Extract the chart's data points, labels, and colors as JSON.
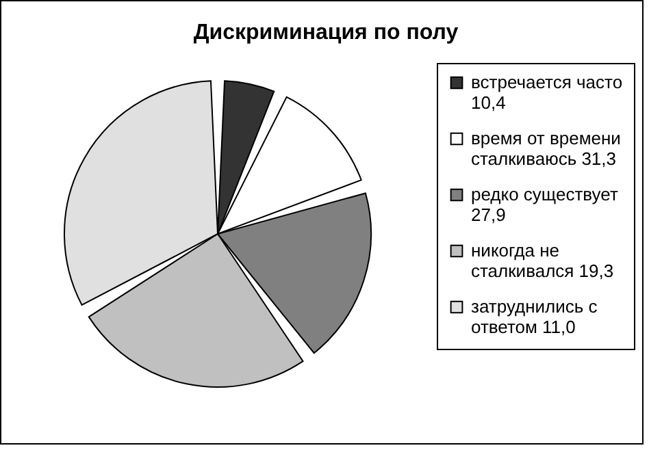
{
  "chart_data": {
    "type": "pie",
    "title": "Дискриминация по полу",
    "categories": [
      "встречается часто 10,4",
      "время от времени сталкиваюсь 31,3",
      "редко существует 27,9",
      "никогда не сталкивался 19,3",
      "затруднились с ответом 11,0"
    ],
    "values": [
      6.7,
      13.3,
      19.9,
      26.7,
      33.4
    ],
    "colors": [
      "#333333",
      "#ffffff",
      "#808080",
      "#c0c0c0",
      "#e0e0e0"
    ],
    "legend": "right"
  }
}
